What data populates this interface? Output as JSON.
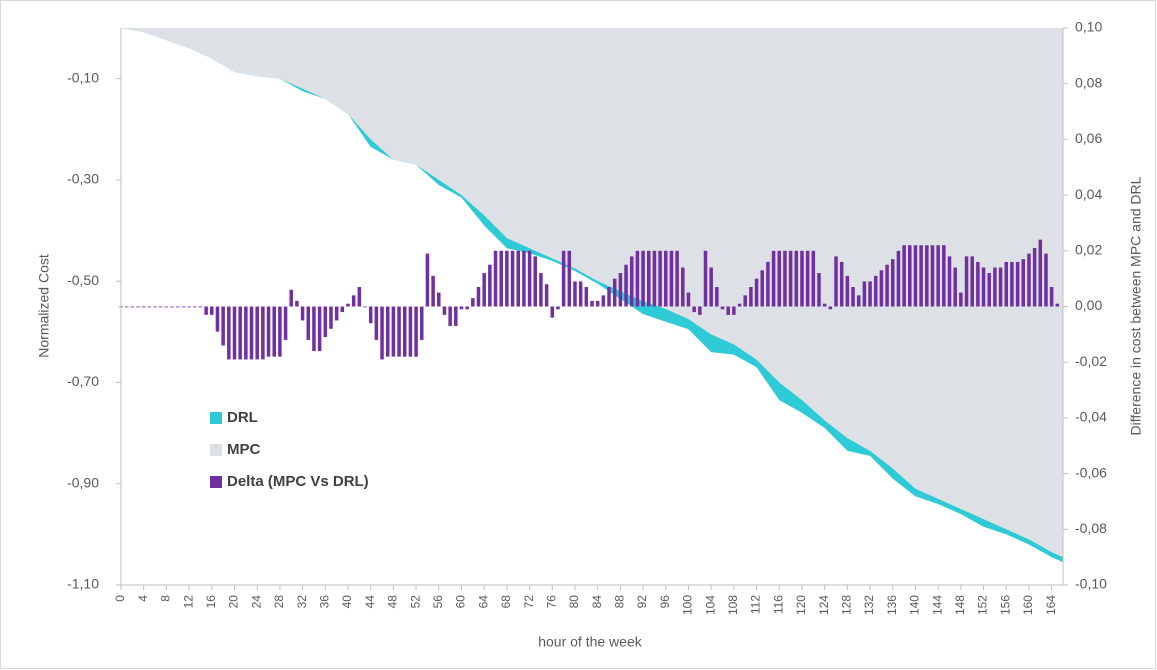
{
  "chart_data": {
    "type": "area",
    "ylabel": "Normalized Cost",
    "y2label": "Difference in cost between MPC and DRL",
    "xlabel": "hour of the week",
    "xlim": [
      0,
      166
    ],
    "xticks": [
      0,
      4,
      8,
      12,
      16,
      20,
      24,
      28,
      32,
      36,
      40,
      44,
      48,
      52,
      56,
      60,
      64,
      68,
      72,
      76,
      80,
      84,
      88,
      92,
      96,
      100,
      104,
      108,
      112,
      116,
      120,
      124,
      128,
      132,
      136,
      140,
      144,
      148,
      152,
      156,
      160,
      164
    ],
    "ylim": [
      -1.1,
      0
    ],
    "yticks": [
      {
        "value": -0.1,
        "label": "-0,10"
      },
      {
        "value": -0.3,
        "label": "-0,30"
      },
      {
        "value": -0.5,
        "label": "-0,50"
      },
      {
        "value": -0.7,
        "label": "-0,70"
      },
      {
        "value": -0.9,
        "label": "-0,90"
      },
      {
        "value": -1.1,
        "label": "-1,10"
      }
    ],
    "y2lim": [
      -0.1,
      0.1
    ],
    "y2ticks": [
      {
        "value": 0.1,
        "label": "0,10"
      },
      {
        "value": 0.08,
        "label": "0,08"
      },
      {
        "value": 0.06,
        "label": "0,06"
      },
      {
        "value": 0.04,
        "label": "0,04"
      },
      {
        "value": 0.02,
        "label": "0,02"
      },
      {
        "value": 0,
        "label": "0,00"
      },
      {
        "value": -0.02,
        "label": "-0,02"
      },
      {
        "value": -0.04,
        "label": "-0,04"
      },
      {
        "value": -0.06,
        "label": "-0,06"
      },
      {
        "value": -0.08,
        "label": "-0,08"
      },
      {
        "value": -0.1,
        "label": "-0,10"
      }
    ],
    "legend": "inside-lower-left",
    "series": [
      {
        "name": "DRL",
        "type": "area",
        "color": "#2ecbd6",
        "x": [
          0,
          4,
          8,
          12,
          16,
          20,
          24,
          28,
          32,
          36,
          40,
          44,
          48,
          52,
          56,
          60,
          64,
          68,
          72,
          76,
          80,
          84,
          88,
          92,
          96,
          100,
          104,
          108,
          112,
          116,
          120,
          124,
          128,
          132,
          136,
          140,
          144,
          148,
          152,
          156,
          160,
          164,
          166
        ],
        "values": [
          0,
          -0.008,
          -0.024,
          -0.04,
          -0.06,
          -0.087,
          -0.095,
          -0.1,
          -0.125,
          -0.14,
          -0.17,
          -0.235,
          -0.26,
          -0.27,
          -0.31,
          -0.335,
          -0.39,
          -0.435,
          -0.445,
          -0.46,
          -0.48,
          -0.505,
          -0.535,
          -0.565,
          -0.58,
          -0.595,
          -0.64,
          -0.645,
          -0.67,
          -0.735,
          -0.76,
          -0.79,
          -0.835,
          -0.845,
          -0.89,
          -0.925,
          -0.94,
          -0.96,
          -0.985,
          -1.0,
          -1.02,
          -1.045,
          -1.055
        ]
      },
      {
        "name": "MPC",
        "type": "area",
        "color": "#dde1e5",
        "x": [
          0,
          4,
          8,
          12,
          16,
          20,
          24,
          28,
          32,
          36,
          40,
          44,
          48,
          52,
          56,
          60,
          64,
          68,
          72,
          76,
          80,
          84,
          88,
          92,
          96,
          100,
          104,
          108,
          112,
          116,
          120,
          124,
          128,
          132,
          136,
          140,
          144,
          148,
          152,
          156,
          160,
          164,
          166
        ],
        "values": [
          0,
          -0.008,
          -0.024,
          -0.04,
          -0.06,
          -0.087,
          -0.095,
          -0.1,
          -0.12,
          -0.14,
          -0.17,
          -0.22,
          -0.26,
          -0.27,
          -0.3,
          -0.33,
          -0.37,
          -0.415,
          -0.435,
          -0.455,
          -0.475,
          -0.5,
          -0.52,
          -0.54,
          -0.555,
          -0.575,
          -0.605,
          -0.625,
          -0.655,
          -0.7,
          -0.735,
          -0.775,
          -0.81,
          -0.835,
          -0.87,
          -0.91,
          -0.93,
          -0.95,
          -0.97,
          -0.99,
          -1.01,
          -1.035,
          -1.045
        ]
      },
      {
        "name": "Delta (MPC Vs DRL)",
        "type": "bar",
        "axis": "y2",
        "color": "#7030a0",
        "x": [
          0,
          1,
          2,
          3,
          4,
          5,
          6,
          7,
          8,
          9,
          10,
          11,
          12,
          13,
          14,
          15,
          16,
          17,
          18,
          19,
          20,
          21,
          22,
          23,
          24,
          25,
          26,
          27,
          28,
          29,
          30,
          31,
          32,
          33,
          34,
          35,
          36,
          37,
          38,
          39,
          40,
          41,
          42,
          43,
          44,
          45,
          46,
          47,
          48,
          49,
          50,
          51,
          52,
          53,
          54,
          55,
          56,
          57,
          58,
          59,
          60,
          61,
          62,
          63,
          64,
          65,
          66,
          67,
          68,
          69,
          70,
          71,
          72,
          73,
          74,
          75,
          76,
          77,
          78,
          79,
          80,
          81,
          82,
          83,
          84,
          85,
          86,
          87,
          88,
          89,
          90,
          91,
          92,
          93,
          94,
          95,
          96,
          97,
          98,
          99,
          100,
          101,
          102,
          103,
          104,
          105,
          106,
          107,
          108,
          109,
          110,
          111,
          112,
          113,
          114,
          115,
          116,
          117,
          118,
          119,
          120,
          121,
          122,
          123,
          124,
          125,
          126,
          127,
          128,
          129,
          130,
          131,
          132,
          133,
          134,
          135,
          136,
          137,
          138,
          139,
          140,
          141,
          142,
          143,
          144,
          145,
          146,
          147,
          148,
          149,
          150,
          151,
          152,
          153,
          154,
          155,
          156,
          157,
          158,
          159,
          160,
          161,
          162,
          163,
          164,
          165
        ],
        "values": [
          -0.0003,
          -0.0003,
          -0.0003,
          -0.0003,
          -0.0003,
          -0.0003,
          -0.0003,
          -0.0003,
          -0.0003,
          -0.0003,
          -0.0003,
          -0.0003,
          -0.0003,
          -0.0003,
          -0.0003,
          -0.003,
          -0.003,
          -0.009,
          -0.014,
          -0.019,
          -0.019,
          -0.019,
          -0.019,
          -0.019,
          -0.019,
          -0.019,
          -0.018,
          -0.018,
          -0.018,
          -0.012,
          0.006,
          0.002,
          -0.005,
          -0.012,
          -0.016,
          -0.016,
          -0.011,
          -0.008,
          -0.005,
          -0.002,
          0.001,
          0.004,
          0.007,
          0,
          -0.006,
          -0.012,
          -0.019,
          -0.018,
          -0.018,
          -0.018,
          -0.018,
          -0.018,
          -0.018,
          -0.012,
          0.019,
          0.011,
          0.005,
          -0.003,
          -0.007,
          -0.007,
          -0.001,
          -0.001,
          0.003,
          0.007,
          0.012,
          0.015,
          0.02,
          0.02,
          0.02,
          0.02,
          0.02,
          0.02,
          0.02,
          0.018,
          0.012,
          0.008,
          -0.004,
          -0.001,
          0.02,
          0.02,
          0.009,
          0.009,
          0.007,
          0.002,
          0.002,
          0.004,
          0.007,
          0.01,
          0.012,
          0.015,
          0.018,
          0.02,
          0.02,
          0.02,
          0.02,
          0.02,
          0.02,
          0.02,
          0.02,
          0.014,
          0.005,
          -0.002,
          -0.003,
          0.02,
          0.014,
          0.007,
          -0.001,
          -0.003,
          -0.003,
          0.001,
          0.004,
          0.007,
          0.01,
          0.013,
          0.016,
          0.02,
          0.02,
          0.02,
          0.02,
          0.02,
          0.02,
          0.02,
          0.02,
          0.012,
          0.001,
          -0.001,
          0.018,
          0.016,
          0.011,
          0.007,
          0.004,
          0.009,
          0.009,
          0.011,
          0.013,
          0.015,
          0.017,
          0.02,
          0.022,
          0.022,
          0.022,
          0.022,
          0.022,
          0.022,
          0.022,
          0.022,
          0.018,
          0.014,
          0.005,
          0.018,
          0.018,
          0.016,
          0.014,
          0.012,
          0.014,
          0.014,
          0.016,
          0.016,
          0.016,
          0.017,
          0.019,
          0.021,
          0.024,
          0.019,
          0.007,
          0.001
        ]
      }
    ]
  }
}
